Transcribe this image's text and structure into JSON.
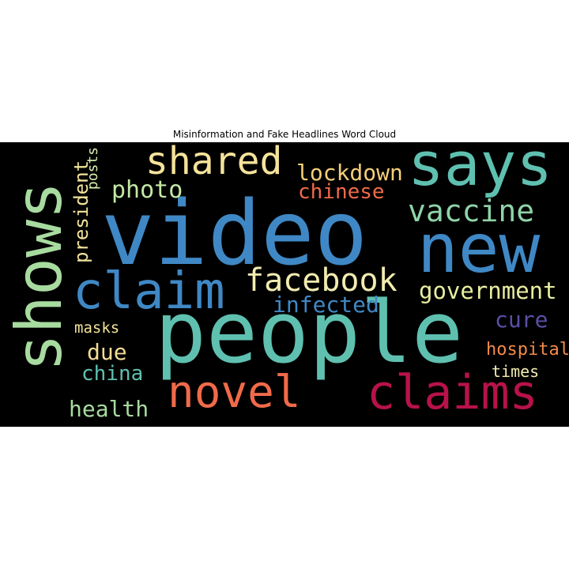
{
  "title": "Misinformation and Fake Headlines Word Cloud",
  "word_cloud": {
    "background": "#000000",
    "words": [
      {
        "text": "video",
        "color": "#3f88c5"
      },
      {
        "text": "people",
        "color": "#5fc0b0"
      },
      {
        "text": "shows",
        "color": "#a8dba0"
      },
      {
        "text": "new",
        "color": "#3f88c5"
      },
      {
        "text": "says",
        "color": "#5fc0b0"
      },
      {
        "text": "claim",
        "color": "#3f88c5"
      },
      {
        "text": "claims",
        "color": "#b8124a"
      },
      {
        "text": "novel",
        "color": "#f06a4a"
      },
      {
        "text": "shared",
        "color": "#f5e39a"
      },
      {
        "text": "facebook",
        "color": "#f2ecb0"
      },
      {
        "text": "vaccine",
        "color": "#8fd4a8"
      },
      {
        "text": "government",
        "color": "#e8eea0"
      },
      {
        "text": "lockdown",
        "color": "#f7cf7a"
      },
      {
        "text": "chinese",
        "color": "#f06a4a"
      },
      {
        "text": "photo",
        "color": "#c3e8a4"
      },
      {
        "text": "infected",
        "color": "#3f88c5"
      },
      {
        "text": "cure",
        "color": "#5a4fa8"
      },
      {
        "text": "hospital",
        "color": "#f28a4a"
      },
      {
        "text": "president",
        "color": "#f2e39a"
      },
      {
        "text": "posts",
        "color": "#d9efb0"
      },
      {
        "text": "masks",
        "color": "#f2e39a"
      },
      {
        "text": "due",
        "color": "#f5dc95"
      },
      {
        "text": "china",
        "color": "#5fc0b0"
      },
      {
        "text": "health",
        "color": "#a8dba0"
      },
      {
        "text": "times",
        "color": "#f2ecb0"
      }
    ]
  }
}
